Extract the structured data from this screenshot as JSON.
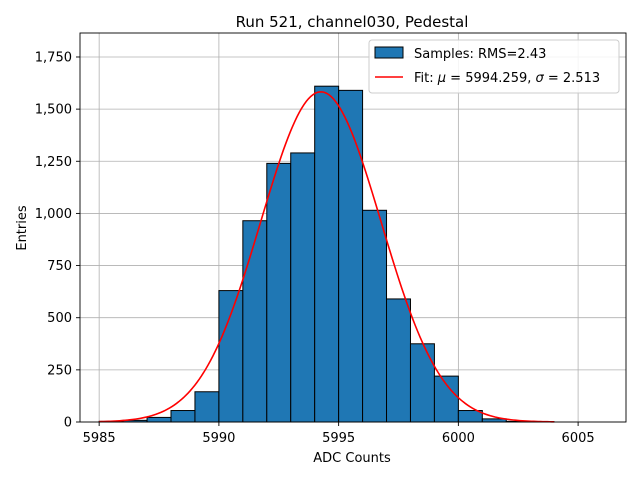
{
  "chart_data": {
    "type": "bar",
    "title": "Run 521, channel030, Pedestal",
    "xlabel": "ADC Counts",
    "ylabel": "Entries",
    "xlim": [
      5984.2,
      6007.0
    ],
    "ylim": [
      0,
      1865
    ],
    "xticks": [
      5985,
      5990,
      5995,
      6000,
      6005
    ],
    "yticks": [
      0,
      250,
      500,
      750,
      1000,
      1250,
      1500,
      1750
    ],
    "grid": true,
    "legend_position": "top-right",
    "histogram": {
      "bin_edges": [
        5985,
        5986,
        5987,
        5988,
        5989,
        5990,
        5991,
        5992,
        5993,
        5994,
        5995,
        5996,
        5997,
        5998,
        5999,
        6000,
        6001,
        6002,
        6003,
        6004
      ],
      "counts": [
        3,
        8,
        22,
        55,
        145,
        630,
        965,
        1240,
        1290,
        1610,
        1590,
        1015,
        590,
        375,
        220,
        55,
        15,
        3,
        1
      ],
      "color": "#1f77b4",
      "edgecolor": "#000000"
    },
    "fit": {
      "mu": 5994.259,
      "sigma": 2.513,
      "amplitude": 1583,
      "x_range": [
        5985,
        6004
      ],
      "color": "#ff0000"
    },
    "legend": [
      {
        "label": "Samples: RMS=2.43",
        "kind": "patch",
        "color": "#1f77b4"
      },
      {
        "label_prefix": "Fit: ",
        "mu_symbol": "μ",
        "mu_text": " = 5994.259, ",
        "sigma_symbol": "σ",
        "sigma_text": " = 2.513",
        "kind": "line",
        "color": "#ff0000"
      }
    ]
  }
}
